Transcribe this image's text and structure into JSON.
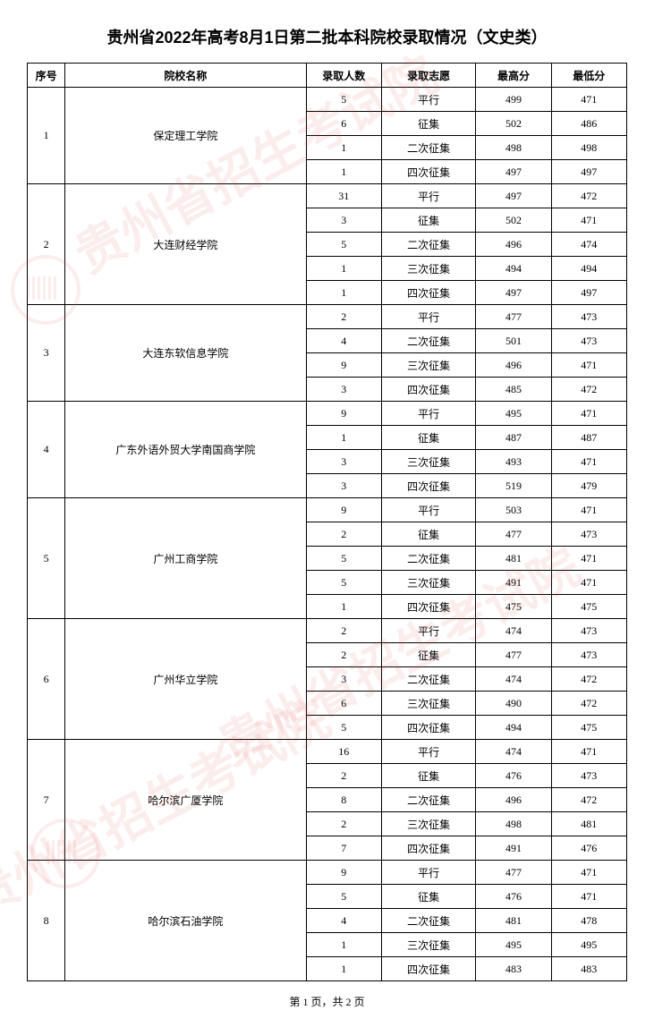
{
  "title": "贵州省2022年高考8月1日第二批本科院校录取情况（文史类）",
  "watermark_text": "贵州省招生考试院",
  "columns": [
    "序号",
    "院校名称",
    "录取人数",
    "录取志愿",
    "最高分",
    "最低分"
  ],
  "footer": "第 1 页，共 2 页",
  "colors": {
    "border": "#000000",
    "text": "#000000",
    "background": "#ffffff",
    "watermark": "rgba(230,80,80,0.10)"
  },
  "schools": [
    {
      "index": 1,
      "name": "保定理工学院",
      "rows": [
        {
          "count": 5,
          "pref": "平行",
          "max": 499,
          "min": 471
        },
        {
          "count": 6,
          "pref": "征集",
          "max": 502,
          "min": 486
        },
        {
          "count": 1,
          "pref": "二次征集",
          "max": 498,
          "min": 498
        },
        {
          "count": 1,
          "pref": "四次征集",
          "max": 497,
          "min": 497
        }
      ]
    },
    {
      "index": 2,
      "name": "大连财经学院",
      "rows": [
        {
          "count": 31,
          "pref": "平行",
          "max": 497,
          "min": 472
        },
        {
          "count": 3,
          "pref": "征集",
          "max": 502,
          "min": 471
        },
        {
          "count": 5,
          "pref": "二次征集",
          "max": 496,
          "min": 474
        },
        {
          "count": 1,
          "pref": "三次征集",
          "max": 494,
          "min": 494
        },
        {
          "count": 1,
          "pref": "四次征集",
          "max": 497,
          "min": 497
        }
      ]
    },
    {
      "index": 3,
      "name": "大连东软信息学院",
      "rows": [
        {
          "count": 2,
          "pref": "平行",
          "max": 477,
          "min": 473
        },
        {
          "count": 4,
          "pref": "二次征集",
          "max": 501,
          "min": 473
        },
        {
          "count": 9,
          "pref": "三次征集",
          "max": 496,
          "min": 471
        },
        {
          "count": 3,
          "pref": "四次征集",
          "max": 485,
          "min": 472
        }
      ]
    },
    {
      "index": 4,
      "name": "广东外语外贸大学南国商学院",
      "rows": [
        {
          "count": 9,
          "pref": "平行",
          "max": 495,
          "min": 471
        },
        {
          "count": 1,
          "pref": "征集",
          "max": 487,
          "min": 487
        },
        {
          "count": 3,
          "pref": "三次征集",
          "max": 493,
          "min": 471
        },
        {
          "count": 3,
          "pref": "四次征集",
          "max": 519,
          "min": 479
        }
      ]
    },
    {
      "index": 5,
      "name": "广州工商学院",
      "rows": [
        {
          "count": 9,
          "pref": "平行",
          "max": 503,
          "min": 471
        },
        {
          "count": 2,
          "pref": "征集",
          "max": 477,
          "min": 473
        },
        {
          "count": 5,
          "pref": "二次征集",
          "max": 481,
          "min": 471
        },
        {
          "count": 5,
          "pref": "三次征集",
          "max": 491,
          "min": 471
        },
        {
          "count": 1,
          "pref": "四次征集",
          "max": 475,
          "min": 475
        }
      ]
    },
    {
      "index": 6,
      "name": "广州华立学院",
      "rows": [
        {
          "count": 2,
          "pref": "平行",
          "max": 474,
          "min": 473
        },
        {
          "count": 2,
          "pref": "征集",
          "max": 477,
          "min": 473
        },
        {
          "count": 3,
          "pref": "二次征集",
          "max": 474,
          "min": 472
        },
        {
          "count": 6,
          "pref": "三次征集",
          "max": 490,
          "min": 472
        },
        {
          "count": 5,
          "pref": "四次征集",
          "max": 494,
          "min": 475
        }
      ]
    },
    {
      "index": 7,
      "name": "哈尔滨广厦学院",
      "rows": [
        {
          "count": 16,
          "pref": "平行",
          "max": 474,
          "min": 471
        },
        {
          "count": 2,
          "pref": "征集",
          "max": 476,
          "min": 473
        },
        {
          "count": 8,
          "pref": "二次征集",
          "max": 496,
          "min": 472
        },
        {
          "count": 2,
          "pref": "三次征集",
          "max": 498,
          "min": 481
        },
        {
          "count": 7,
          "pref": "四次征集",
          "max": 491,
          "min": 476
        }
      ]
    },
    {
      "index": 8,
      "name": "哈尔滨石油学院",
      "rows": [
        {
          "count": 9,
          "pref": "平行",
          "max": 477,
          "min": 471
        },
        {
          "count": 5,
          "pref": "征集",
          "max": 476,
          "min": 471
        },
        {
          "count": 4,
          "pref": "二次征集",
          "max": 481,
          "min": 478
        },
        {
          "count": 1,
          "pref": "三次征集",
          "max": 495,
          "min": 495
        },
        {
          "count": 1,
          "pref": "四次征集",
          "max": 483,
          "min": 483
        }
      ]
    }
  ]
}
